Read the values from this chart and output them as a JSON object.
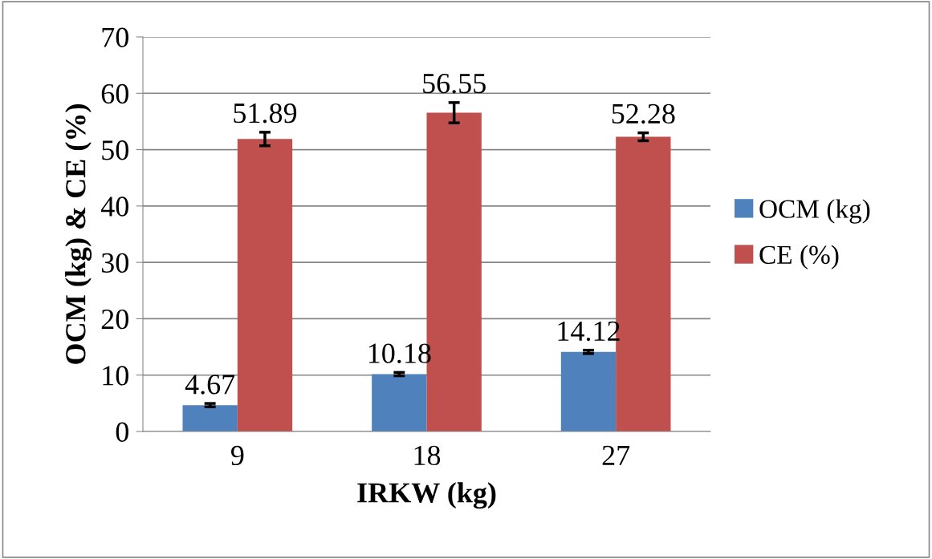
{
  "chart_data": {
    "type": "bar",
    "xlabel": "IRKW (kg)",
    "ylabel": "OCM (kg) & CE (%)",
    "categories": [
      "9",
      "18",
      "27"
    ],
    "series": [
      {
        "name": "OCM (kg)",
        "color": "#4f81bd",
        "values": [
          4.67,
          10.18,
          14.12
        ],
        "errors": [
          0.3,
          0.3,
          0.3
        ]
      },
      {
        "name": "CE (%)",
        "color": "#c0504d",
        "values": [
          51.89,
          56.55,
          52.28
        ],
        "errors": [
          1.2,
          1.8,
          0.7
        ]
      }
    ],
    "ylim": [
      0,
      70
    ],
    "yticks": [
      0,
      10,
      20,
      30,
      40,
      50,
      60,
      70
    ],
    "grid": "y",
    "legend": "right",
    "data_labels": true
  }
}
